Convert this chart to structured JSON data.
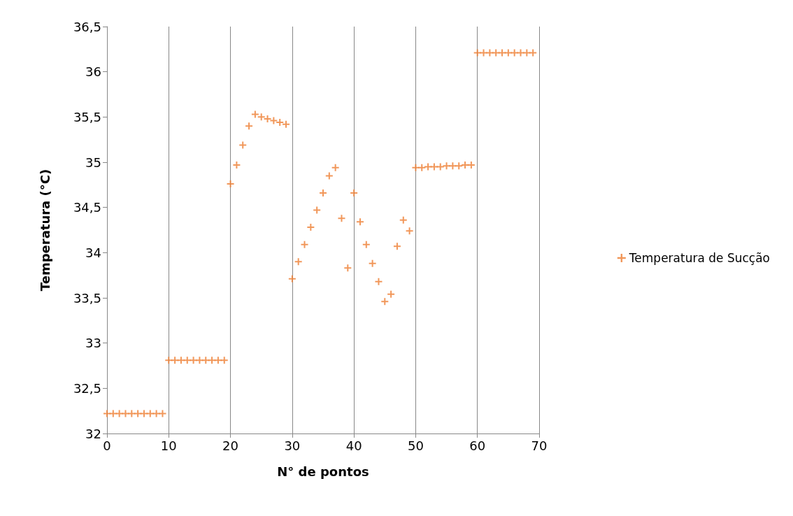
{
  "chart_data": {
    "type": "scatter",
    "xlabel": "N° de pontos",
    "ylabel": "Temperatura (°C)",
    "x": [
      0,
      1,
      2,
      3,
      4,
      5,
      6,
      7,
      8,
      9,
      10,
      11,
      12,
      13,
      14,
      15,
      16,
      17,
      18,
      19,
      20,
      21,
      22,
      23,
      24,
      25,
      26,
      27,
      28,
      29,
      30,
      31,
      32,
      33,
      34,
      35,
      36,
      37,
      38,
      39,
      40,
      41,
      42,
      43,
      44,
      45,
      46,
      47,
      48,
      49,
      50,
      51,
      52,
      53,
      54,
      55,
      56,
      57,
      58,
      59,
      60,
      61,
      62,
      63,
      64,
      65,
      66,
      67,
      68,
      69
    ],
    "series": [
      {
        "name": "Temperatura de Sucção",
        "color": "#ed7d31",
        "values": [
          32.22,
          32.22,
          32.22,
          32.22,
          32.22,
          32.22,
          32.22,
          32.22,
          32.22,
          32.22,
          32.81,
          32.81,
          32.81,
          32.81,
          32.81,
          32.81,
          32.81,
          32.81,
          32.81,
          32.81,
          34.76,
          34.97,
          35.19,
          35.4,
          35.53,
          35.5,
          35.48,
          35.46,
          35.44,
          35.42,
          33.71,
          33.9,
          34.09,
          34.28,
          34.47,
          34.66,
          34.85,
          34.94,
          34.38,
          33.83,
          34.66,
          34.34,
          34.09,
          33.88,
          33.68,
          33.46,
          33.54,
          34.07,
          34.36,
          34.24,
          34.94,
          34.94,
          34.95,
          34.95,
          34.95,
          34.96,
          34.96,
          34.96,
          34.97,
          34.97,
          36.21,
          36.21,
          36.21,
          36.21,
          36.21,
          36.21,
          36.21,
          36.21,
          36.21,
          36.21
        ]
      }
    ],
    "xlim": [
      0,
      70
    ],
    "xticks": [
      0,
      10,
      20,
      30,
      40,
      50,
      60,
      70
    ],
    "ylim": [
      32,
      36.5
    ],
    "yticks": [
      {
        "value": 32,
        "label": "32"
      },
      {
        "value": 32.5,
        "label": "32,5"
      },
      {
        "value": 33,
        "label": "33"
      },
      {
        "value": 33.5,
        "label": "33,5"
      },
      {
        "value": 34,
        "label": "34"
      },
      {
        "value": 34.5,
        "label": "34,5"
      },
      {
        "value": 35,
        "label": "35"
      },
      {
        "value": 35.5,
        "label": "35,5"
      },
      {
        "value": 36,
        "label": "36"
      },
      {
        "value": 36.5,
        "label": "36,5"
      }
    ],
    "grid": "x",
    "legend": "right",
    "marker": "cross"
  }
}
